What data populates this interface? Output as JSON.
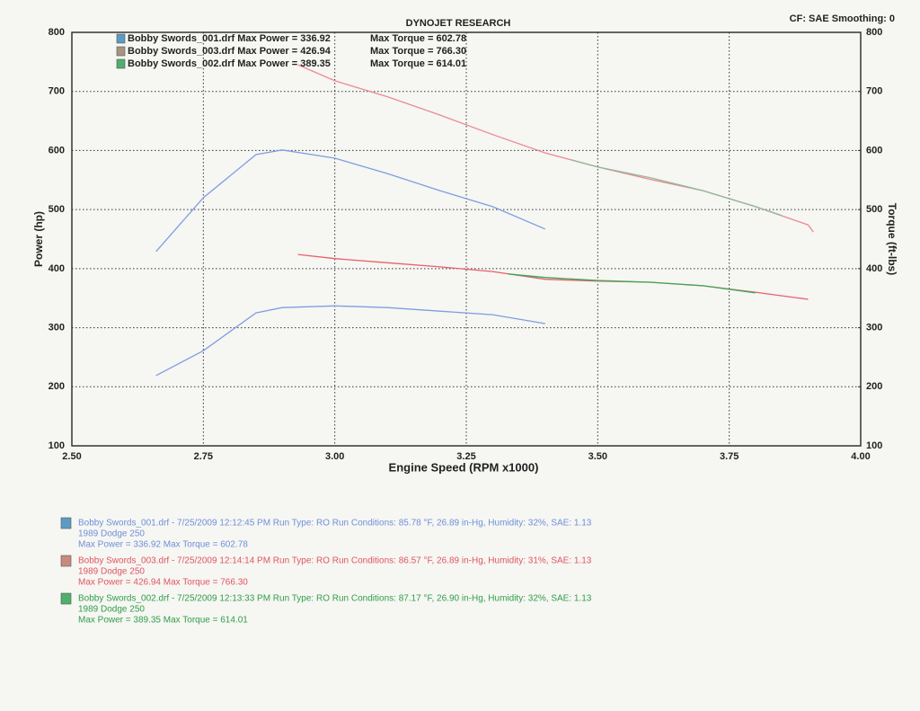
{
  "chart_data": {
    "type": "line",
    "title": "DYNOJET RESEARCH",
    "corner_text": "CF: SAE  Smoothing: 0",
    "xlabel": "Engine Speed (RPM x1000)",
    "ylabel": "Power (hp)",
    "y2label": "Torque (ft-lbs)",
    "xlim": [
      2.5,
      4.0
    ],
    "xticks": [
      {
        "value": 2.5,
        "label": "2.50"
      },
      {
        "value": 2.75,
        "label": "2.75"
      },
      {
        "value": 3.0,
        "label": "3.00"
      },
      {
        "value": 3.25,
        "label": "3.25"
      },
      {
        "value": 3.5,
        "label": "3.50"
      },
      {
        "value": 3.75,
        "label": "3.75"
      },
      {
        "value": 4.0,
        "label": "4.00"
      }
    ],
    "ylim": [
      100,
      800
    ],
    "yticks": [
      100,
      200,
      300,
      400,
      500,
      600,
      700,
      800
    ],
    "y2lim": [
      100,
      800
    ],
    "y2ticks": [
      100,
      200,
      300,
      400,
      500,
      600,
      700,
      800
    ],
    "grid": true,
    "series": [
      {
        "name": "Bobby Swords_001.drf Max Power = 336.92",
        "color": "#7f9ee0",
        "swatch": "#5a9cc4",
        "x": [
          2.66,
          2.75,
          2.85,
          2.9,
          3.0,
          3.1,
          3.2,
          3.3,
          3.4
        ],
        "values": [
          219,
          261,
          325,
          334,
          337,
          334,
          328,
          322,
          307
        ]
      },
      {
        "name": "Max Torque = 602.78",
        "color": "#7f9ee0",
        "axis": "y2",
        "x": [
          2.66,
          2.75,
          2.85,
          2.9,
          3.0,
          3.1,
          3.2,
          3.3,
          3.4
        ],
        "values": [
          429,
          520,
          593,
          601,
          587,
          561,
          532,
          505,
          467
        ]
      },
      {
        "name": "Bobby Swords_003.drf Max Power = 426.94",
        "color": "#e8606a",
        "swatch": "#a89482",
        "x": [
          2.93,
          3.0,
          3.1,
          3.2,
          3.3,
          3.4,
          3.5,
          3.6,
          3.7,
          3.8,
          3.9
        ],
        "values": [
          424,
          417,
          410,
          403,
          395,
          382,
          379,
          377,
          371,
          360,
          348
        ]
      },
      {
        "name": "Max Torque = 766.30",
        "color": "#eb8a90",
        "axis": "y2",
        "x": [
          2.93,
          3.0,
          3.1,
          3.2,
          3.3,
          3.4,
          3.5,
          3.6,
          3.7,
          3.8,
          3.9,
          3.91
        ],
        "values": [
          745,
          718,
          691,
          660,
          627,
          596,
          572,
          551,
          532,
          505,
          474,
          462
        ]
      },
      {
        "name": "Bobby Swords_002.drf Max Power = 389.35",
        "color": "#3aaa55",
        "swatch": "#4fb06c",
        "x": [
          3.33,
          3.4,
          3.5,
          3.6,
          3.7,
          3.75,
          3.8
        ],
        "values": [
          391,
          385,
          380,
          377,
          371,
          365,
          359
        ]
      },
      {
        "name": "Max Torque = 614.01",
        "color": "#8fb89a",
        "axis": "y2",
        "x": [
          3.45,
          3.5,
          3.6,
          3.7,
          3.8,
          3.85
        ],
        "values": [
          584,
          572,
          554,
          532,
          505,
          490
        ]
      }
    ],
    "notes": [
      {
        "color": "#6f8fd8",
        "swatch": "#5a9cc4",
        "lines": [
          "Bobby Swords_001.drf - 7/25/2009 12:12:45 PM  Run Type: RO  Run Conditions: 85.78 °F, 26.89 in-Hg,  Humidity:  32%, SAE: 1.13",
          "1989 Dodge 250",
          "Max Power = 336.92  Max Torque = 602.78"
        ]
      },
      {
        "color": "#e05560",
        "swatch": "#c88a80",
        "lines": [
          "Bobby Swords_003.drf - 7/25/2009 12:14:14 PM  Run Type: RO  Run Conditions: 86.57 °F, 26.89 in-Hg,  Humidity:  31%, SAE: 1.13",
          "1989 Dodge 250",
          "Max Power = 426.94  Max Torque = 766.30"
        ]
      },
      {
        "color": "#2f9e48",
        "swatch": "#4fb06c",
        "lines": [
          "Bobby Swords_002.drf - 7/25/2009 12:13:33 PM  Run Type: RO  Run Conditions: 87.17 °F, 26.90 in-Hg,  Humidity:  32%, SAE: 1.13",
          "1989 Dodge 250",
          "Max Power = 389.35  Max Torque = 614.01"
        ]
      }
    ]
  }
}
